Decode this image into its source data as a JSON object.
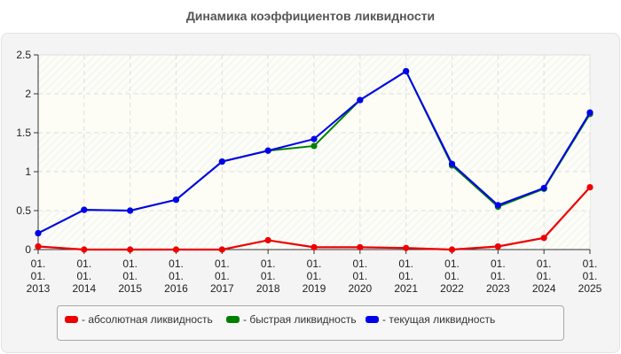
{
  "title": "Динамика коэффициентов ликвидности",
  "colors": {
    "absolute": "#ee0000",
    "quick": "#008000",
    "current": "#0000ee",
    "panel_bg": "#f4f4f4",
    "plot_bg": "#fcfcf6",
    "grid": "#dddddd"
  },
  "legend": {
    "items": [
      {
        "label": "- абсолютная ликвидность",
        "color": "#ee0000"
      },
      {
        "label": "- быстрая ликвидность",
        "color": "#008000"
      },
      {
        "label": "- текущая ликвидность",
        "color": "#0000ee"
      }
    ]
  },
  "chart_data": {
    "type": "line",
    "title": "Динамика коэффициентов ликвидности",
    "xlabel": "",
    "ylabel": "",
    "ylim": [
      0,
      2.5
    ],
    "yticks": [
      "0",
      "0.5",
      "1",
      "1.5",
      "2",
      "2.5"
    ],
    "grid": true,
    "legend_position": "bottom",
    "categories": [
      "01.01.2013",
      "01.01.2014",
      "01.01.2015",
      "01.01.2016",
      "01.01.2017",
      "01.01.2018",
      "01.01.2019",
      "01.01.2020",
      "01.01.2021",
      "01.01.2022",
      "01.01.2023",
      "01.01.2024",
      "01.01.2025"
    ],
    "series": [
      {
        "name": "абсолютная ликвидность",
        "color": "#ee0000",
        "values": [
          0.04,
          0.0,
          0.0,
          0.0,
          0.0,
          0.12,
          0.03,
          0.03,
          0.02,
          0.0,
          0.04,
          0.15,
          0.8
        ]
      },
      {
        "name": "быстрая ликвидность",
        "color": "#008000",
        "values": [
          0.21,
          0.51,
          0.5,
          0.64,
          1.13,
          1.27,
          1.33,
          1.92,
          2.29,
          1.08,
          0.55,
          0.78,
          1.74
        ]
      },
      {
        "name": "текущая ликвидность",
        "color": "#0000ee",
        "values": [
          0.21,
          0.51,
          0.5,
          0.64,
          1.13,
          1.27,
          1.42,
          1.92,
          2.29,
          1.1,
          0.57,
          0.79,
          1.76
        ]
      }
    ]
  }
}
